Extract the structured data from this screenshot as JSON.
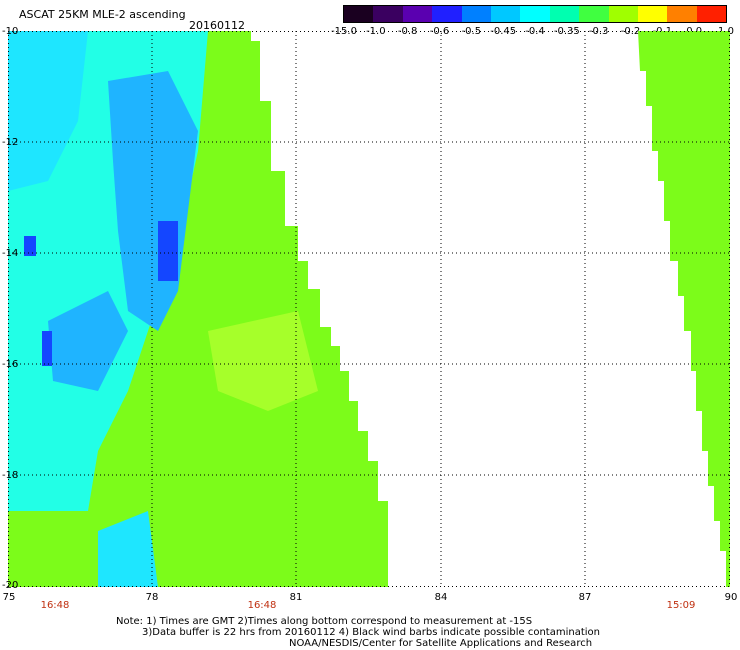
{
  "header": {
    "title": "ASCAT 25KM MLE-2 ascending",
    "date": "20160112"
  },
  "colorbar": {
    "labels": [
      "-15.0",
      "-1.0",
      "-0.8",
      "-0.6",
      "-0.5",
      "-0.45",
      "-0.4",
      "-0.35",
      "-0.3",
      "-0.2",
      "-0.1",
      "0.0",
      "1.0"
    ],
    "colors": [
      "#1a0020",
      "#3a0060",
      "#5a00b0",
      "#2020ff",
      "#0080ff",
      "#00c8ff",
      "#00ffff",
      "#00ffb0",
      "#40ff40",
      "#a0ff00",
      "#ffff00",
      "#ff8000",
      "#ff2000"
    ]
  },
  "axes": {
    "y_labels": [
      "-10",
      "-12",
      "-14",
      "-16",
      "-18",
      "-20"
    ],
    "x_labels": [
      "75",
      "78",
      "81",
      "84",
      "87",
      "90"
    ],
    "time_labels": [
      "16:48",
      "16:48",
      "15:09"
    ]
  },
  "notes": {
    "line1": "Note: 1) Times are GMT 2)Times along bottom correspond to measurement at -15S",
    "line2": "3)Data buffer is 22 hrs from 20160112 4) Black wind barbs indicate possible contamination",
    "line3": "NOAA/NESDIS/Center for Satellite Applications and Research"
  },
  "map_colors": {
    "green": "#7cfc1a",
    "light_green": "#a6ff2a",
    "cyan": "#22ffe6",
    "deep_cyan": "#1ee6ff",
    "blue_cyan": "#1fb4ff",
    "blue": "#1446ff"
  }
}
